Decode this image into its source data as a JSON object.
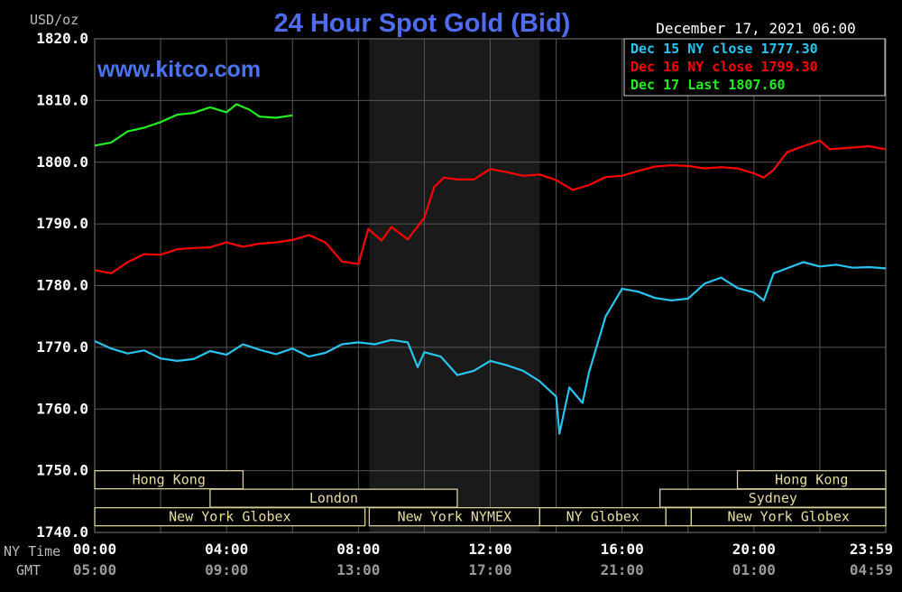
{
  "chart_data": {
    "type": "line",
    "title": "24 Hour Spot Gold (Bid)",
    "ylabel": "USD/oz",
    "timestamp": "December 17, 2021 06:00",
    "watermark": "www.kitco.com",
    "ylim": [
      1740,
      1820
    ],
    "y_ticks": [
      "1820.0",
      "1810.0",
      "1800.0",
      "1790.0",
      "1780.0",
      "1770.0",
      "1760.0",
      "1750.0",
      "1740.0"
    ],
    "x_ticks_ny": [
      "00:00",
      "04:00",
      "08:00",
      "12:00",
      "16:00",
      "20:00",
      "23:59"
    ],
    "x_ticks_gmt": [
      "05:00",
      "09:00",
      "13:00",
      "17:00",
      "21:00",
      "01:00",
      "04:59"
    ],
    "x_row_labels": {
      "ny": "NY Time",
      "gmt": "GMT"
    },
    "x_unit": "hours (NY time)",
    "xlim": [
      0,
      24
    ],
    "legend_position": "top-right",
    "grid": true,
    "shaded_region_hours": [
      8.33,
      13.5
    ],
    "series": [
      {
        "key": "dec15",
        "legend": "Dec 15 NY close 1777.30",
        "color": "#29c4ee",
        "points": [
          [
            0,
            1771
          ],
          [
            0.5,
            1769.8
          ],
          [
            1,
            1769
          ],
          [
            1.5,
            1769.5
          ],
          [
            2,
            1768.2
          ],
          [
            2.5,
            1767.8
          ],
          [
            3,
            1768.1
          ],
          [
            3.5,
            1769.4
          ],
          [
            4,
            1768.8
          ],
          [
            4.5,
            1770.5
          ],
          [
            5,
            1769.6
          ],
          [
            5.5,
            1768.9
          ],
          [
            6,
            1769.8
          ],
          [
            6.5,
            1768.5
          ],
          [
            7,
            1769.1
          ],
          [
            7.5,
            1770.5
          ],
          [
            8,
            1770.8
          ],
          [
            8.5,
            1770.5
          ],
          [
            9,
            1771.2
          ],
          [
            9.5,
            1770.8
          ],
          [
            9.8,
            1766.8
          ],
          [
            10,
            1769.2
          ],
          [
            10.5,
            1768.5
          ],
          [
            11,
            1765.5
          ],
          [
            11.5,
            1766.2
          ],
          [
            12,
            1767.8
          ],
          [
            12.5,
            1767.1
          ],
          [
            13,
            1766.2
          ],
          [
            13.5,
            1764.5
          ],
          [
            14,
            1762
          ],
          [
            14.1,
            1756
          ],
          [
            14.4,
            1763.5
          ],
          [
            14.8,
            1761
          ],
          [
            15,
            1766
          ],
          [
            15.5,
            1775
          ],
          [
            16,
            1779.5
          ],
          [
            16.5,
            1779
          ],
          [
            17,
            1778
          ],
          [
            17.5,
            1777.6
          ],
          [
            18,
            1777.9
          ],
          [
            18.5,
            1780.3
          ],
          [
            19,
            1781.3
          ],
          [
            19.5,
            1779.6
          ],
          [
            20,
            1778.9
          ],
          [
            20.3,
            1777.6
          ],
          [
            20.6,
            1782
          ],
          [
            21,
            1782.8
          ],
          [
            21.5,
            1783.8
          ],
          [
            22,
            1783.1
          ],
          [
            22.5,
            1783.4
          ],
          [
            23,
            1782.9
          ],
          [
            23.5,
            1783
          ],
          [
            24,
            1782.8
          ]
        ]
      },
      {
        "key": "dec16",
        "legend": "Dec 16 NY close 1799.30",
        "color": "#ff0000",
        "points": [
          [
            0,
            1782.5
          ],
          [
            0.5,
            1782
          ],
          [
            1,
            1783.8
          ],
          [
            1.5,
            1785.1
          ],
          [
            2,
            1785
          ],
          [
            2.5,
            1785.9
          ],
          [
            3,
            1786.1
          ],
          [
            3.5,
            1786.2
          ],
          [
            4,
            1787
          ],
          [
            4.5,
            1786.3
          ],
          [
            5,
            1786.8
          ],
          [
            5.5,
            1787
          ],
          [
            6,
            1787.4
          ],
          [
            6.5,
            1788.2
          ],
          [
            7,
            1787
          ],
          [
            7.5,
            1783.9
          ],
          [
            8,
            1783.5
          ],
          [
            8.3,
            1789.2
          ],
          [
            8.7,
            1787.3
          ],
          [
            9,
            1789.5
          ],
          [
            9.5,
            1787.5
          ],
          [
            10,
            1791
          ],
          [
            10.3,
            1796
          ],
          [
            10.6,
            1797.5
          ],
          [
            11,
            1797.2
          ],
          [
            11.5,
            1797.2
          ],
          [
            12,
            1798.9
          ],
          [
            12.5,
            1798.4
          ],
          [
            13,
            1797.8
          ],
          [
            13.5,
            1798
          ],
          [
            14,
            1797.1
          ],
          [
            14.5,
            1795.5
          ],
          [
            15,
            1796.3
          ],
          [
            15.5,
            1797.6
          ],
          [
            16,
            1797.8
          ],
          [
            16.5,
            1798.6
          ],
          [
            17,
            1799.3
          ],
          [
            17.5,
            1799.5
          ],
          [
            18,
            1799.4
          ],
          [
            18.5,
            1799
          ],
          [
            19,
            1799.2
          ],
          [
            19.5,
            1799
          ],
          [
            20,
            1798.2
          ],
          [
            20.3,
            1797.5
          ],
          [
            20.6,
            1798.8
          ],
          [
            21,
            1801.6
          ],
          [
            21.5,
            1802.6
          ],
          [
            22,
            1803.5
          ],
          [
            22.3,
            1802.1
          ],
          [
            22.8,
            1802.3
          ],
          [
            23.5,
            1802.6
          ],
          [
            24,
            1802.1
          ]
        ]
      },
      {
        "key": "dec17",
        "legend": "Dec 17 Last 1807.60",
        "color": "#22ee22",
        "points": [
          [
            0,
            1802.7
          ],
          [
            0.5,
            1803.2
          ],
          [
            1,
            1805
          ],
          [
            1.5,
            1805.6
          ],
          [
            2,
            1806.5
          ],
          [
            2.5,
            1807.7
          ],
          [
            3,
            1808
          ],
          [
            3.5,
            1808.9
          ],
          [
            4,
            1808.1
          ],
          [
            4.3,
            1809.4
          ],
          [
            4.7,
            1808.5
          ],
          [
            5,
            1807.4
          ],
          [
            5.5,
            1807.2
          ],
          [
            6,
            1807.6
          ]
        ]
      }
    ],
    "session_bars": [
      {
        "label": "Hong Kong",
        "row": 0,
        "start": 0,
        "end": 4.5
      },
      {
        "label": "London",
        "row": 1,
        "start": 3.5,
        "end": 11
      },
      {
        "label": "New York Globex",
        "row": 2,
        "start": 0,
        "end": 8.2
      },
      {
        "label": "New York NYMEX",
        "row": 2,
        "start": 8.33,
        "end": 13.5
      },
      {
        "label": "NY Globex",
        "row": 2,
        "start": 13.5,
        "end": 17.33
      },
      {
        "label": "",
        "row": 2,
        "start": 17.33,
        "end": 18.1
      },
      {
        "label": "New York Globex",
        "row": 2,
        "start": 18.1,
        "end": 24
      },
      {
        "label": "Sydney",
        "row": 1,
        "start": 17.15,
        "end": 24
      },
      {
        "label": "Hong Kong",
        "row": 0,
        "start": 19.5,
        "end": 24
      }
    ]
  }
}
